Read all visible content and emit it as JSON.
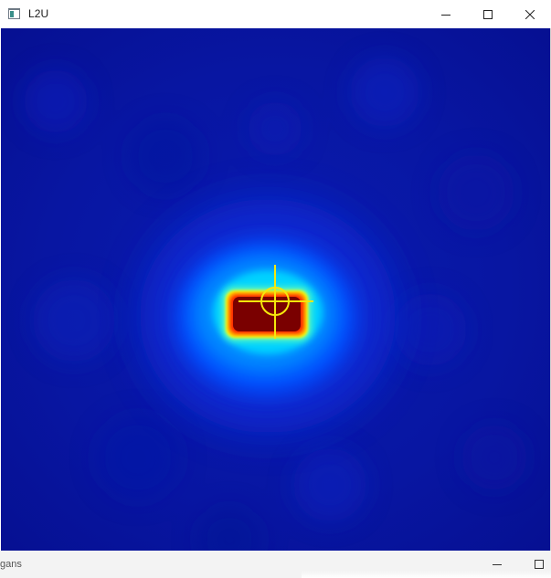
{
  "window": {
    "title": "L2U",
    "app_icon": "app-window-icon",
    "controls": [
      "minimize-icon",
      "maximize-icon",
      "close-icon"
    ]
  },
  "beam_profile": {
    "colormap": "jet",
    "background_color": "#08149e",
    "hot_color": "#7a0000",
    "crosshair_color": "#f5e80c"
  },
  "second_window": {
    "partial_title": "gans",
    "controls": [
      "minimize-icon",
      "maximize-icon"
    ]
  }
}
